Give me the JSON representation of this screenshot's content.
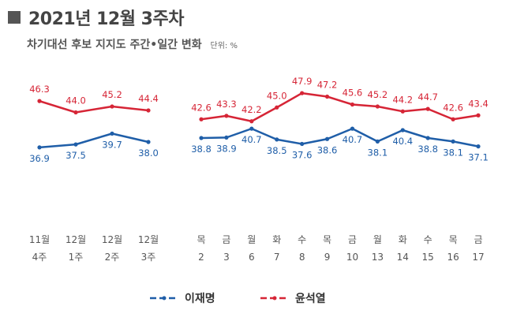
{
  "title": "2021년 12월 3주차",
  "subtitle": "차기대선 후보 지지도 주간•일간 변화",
  "unit": "단위: %",
  "colors": {
    "lee": "#1f5ea8",
    "yoon": "#d62536",
    "axis_text": "#555555"
  },
  "chart_data": [
    {
      "type": "line",
      "panel": "weekly",
      "categories": [
        [
          "11월",
          "4주"
        ],
        [
          "12월",
          "1주"
        ],
        [
          "12월",
          "2주"
        ],
        [
          "12월",
          "3주"
        ]
      ],
      "series": [
        {
          "name": "이재명",
          "values": [
            36.9,
            37.5,
            39.7,
            38.0
          ],
          "color": "#1f5ea8",
          "labels": [
            "36.9",
            "37.5",
            "39.7",
            "38.0"
          ]
        },
        {
          "name": "윤석열",
          "values": [
            46.3,
            44.0,
            45.2,
            44.4
          ],
          "color": "#d62536",
          "labels": [
            "46.3",
            "44.0",
            "45.2",
            "44.4"
          ]
        }
      ],
      "ylim": [
        34,
        50
      ],
      "grid": false
    },
    {
      "type": "line",
      "panel": "daily",
      "categories": [
        [
          "목",
          "2"
        ],
        [
          "금",
          "3"
        ],
        [
          "월",
          "6"
        ],
        [
          "화",
          "7"
        ],
        [
          "수",
          "8"
        ],
        [
          "목",
          "9"
        ],
        [
          "금",
          "10"
        ],
        [
          "월",
          "13"
        ],
        [
          "화",
          "14"
        ],
        [
          "수",
          "15"
        ],
        [
          "목",
          "16"
        ],
        [
          "금",
          "17"
        ]
      ],
      "series": [
        {
          "name": "이재명",
          "values": [
            38.8,
            38.9,
            40.7,
            38.5,
            37.6,
            38.6,
            40.7,
            38.1,
            40.4,
            38.8,
            38.1,
            37.1
          ],
          "color": "#1f5ea8",
          "labels": [
            "38.8",
            "38.9",
            "40.7",
            "38.5",
            "37.6",
            "38.6",
            "40.7",
            "38.1",
            "40.4",
            "38.8",
            "38.1",
            "37.1"
          ]
        },
        {
          "name": "윤석열",
          "values": [
            42.6,
            43.3,
            42.2,
            45.0,
            47.9,
            47.2,
            45.6,
            45.2,
            44.2,
            44.7,
            42.6,
            43.4
          ],
          "color": "#d62536",
          "labels": [
            "42.6",
            "43.3",
            "42.2",
            "45.0",
            "47.9",
            "47.2",
            "45.6",
            "45.2",
            "44.2",
            "44.7",
            "42.6",
            "43.4"
          ]
        }
      ],
      "ylim": [
        34,
        50
      ],
      "grid": false
    }
  ],
  "legend": [
    {
      "name": "이재명",
      "color": "#1f5ea8"
    },
    {
      "name": "윤석열",
      "color": "#d62536"
    }
  ]
}
